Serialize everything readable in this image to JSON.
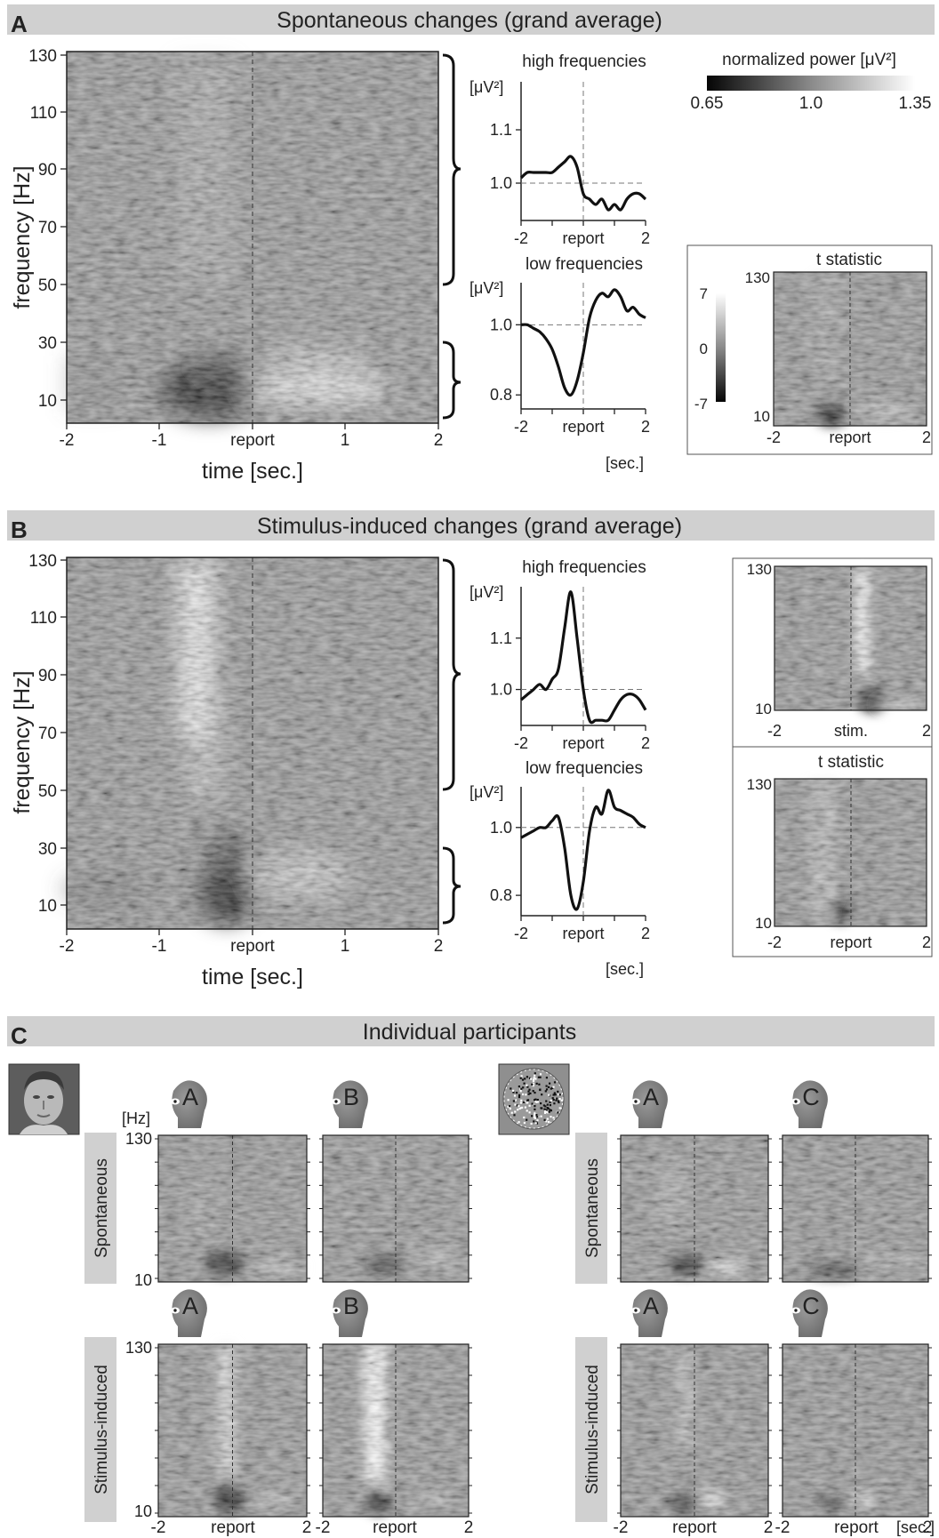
{
  "panels": {
    "A": {
      "letter": "A",
      "title": "Spontaneous changes (grand average)"
    },
    "B": {
      "letter": "B",
      "title": "Stimulus-induced changes (grand average)"
    },
    "C": {
      "letter": "C",
      "title": "Individual participants"
    }
  },
  "labels": {
    "frequency_axis": "frequency [Hz]",
    "time_axis": "time [sec.]",
    "high_frequencies": "high frequencies",
    "low_frequencies": "low frequencies",
    "power_unit": "[μV²]",
    "sec_unit": "[sec.]",
    "hz_unit": "[Hz]",
    "t_statistic": "t statistic",
    "colorbar_title": "normalized power  [μV²]",
    "colorbar_ticks": [
      "0.65",
      "1.0",
      "1.35"
    ],
    "tstat_ticks": [
      "7",
      "0",
      "-7"
    ],
    "report": "report",
    "stim": "stim.",
    "row_spontaneous": "Spontaneous",
    "row_stimulus": "Stimulus-induced",
    "participants_face": [
      "A",
      "B"
    ],
    "participants_noise": [
      "A",
      "C"
    ]
  },
  "colors": {
    "banner": "#d0d0d0",
    "trace": "#111111",
    "dashed": "#777777",
    "map_mid": "#8a8a8a"
  },
  "chart_data": [
    {
      "type": "heatmap",
      "panel": "A",
      "title": "Spontaneous changes (grand average)",
      "xlabel": "time [sec.]",
      "ylabel": "frequency [Hz]",
      "x_ticks": [
        "-2",
        "-1",
        "report",
        "1",
        "2"
      ],
      "y_ticks": [
        "130",
        "110",
        "90",
        "70",
        "50",
        "30",
        "10"
      ],
      "xlim": [
        -2,
        2
      ],
      "ylim": [
        3,
        130
      ],
      "colorbar": {
        "label": "normalized power [μV²]",
        "min": 0.65,
        "mid": 1.0,
        "max": 1.35
      }
    },
    {
      "type": "line",
      "panel": "A",
      "title": "high frequencies",
      "ylabel": "[μV²]",
      "xlim": [
        -2,
        2
      ],
      "ylim": [
        0.93,
        1.19
      ],
      "y_ticks": [
        "1.1",
        "1.0"
      ],
      "x_ticks": [
        "-2",
        "report",
        "2"
      ],
      "x": [
        -2.0,
        -1.8,
        -1.6,
        -1.4,
        -1.2,
        -1.0,
        -0.8,
        -0.6,
        -0.4,
        -0.2,
        0.0,
        0.2,
        0.4,
        0.6,
        0.8,
        1.0,
        1.2,
        1.4,
        1.6,
        1.8,
        2.0
      ],
      "y": [
        1.01,
        1.02,
        1.02,
        1.02,
        1.02,
        1.02,
        1.03,
        1.04,
        1.05,
        1.03,
        0.98,
        0.97,
        0.96,
        0.97,
        0.95,
        0.96,
        0.95,
        0.97,
        0.98,
        0.98,
        0.97
      ]
    },
    {
      "type": "line",
      "panel": "A",
      "title": "low frequencies",
      "ylabel": "[μV²]",
      "xlim": [
        -2,
        2
      ],
      "ylim": [
        0.76,
        1.12
      ],
      "y_ticks": [
        "1.0",
        "0.8"
      ],
      "x_ticks": [
        "-2",
        "report",
        "2"
      ],
      "x": [
        -2.0,
        -1.8,
        -1.6,
        -1.4,
        -1.2,
        -1.0,
        -0.8,
        -0.6,
        -0.4,
        -0.2,
        0.0,
        0.2,
        0.4,
        0.6,
        0.8,
        1.0,
        1.2,
        1.4,
        1.6,
        1.8,
        2.0
      ],
      "y": [
        1.0,
        1.0,
        0.99,
        0.98,
        0.96,
        0.93,
        0.88,
        0.82,
        0.8,
        0.84,
        0.92,
        1.02,
        1.07,
        1.09,
        1.08,
        1.1,
        1.08,
        1.04,
        1.05,
        1.03,
        1.02
      ]
    },
    {
      "type": "heatmap",
      "panel": "A",
      "title": "t statistic",
      "x_ticks": [
        "-2",
        "report",
        "2"
      ],
      "y_ticks": [
        "130",
        "10"
      ],
      "colorbar": {
        "min": -7,
        "mid": 0,
        "max": 7
      }
    },
    {
      "type": "heatmap",
      "panel": "B",
      "title": "Stimulus-induced changes (grand average)",
      "xlabel": "time [sec.]",
      "ylabel": "frequency [Hz]",
      "x_ticks": [
        "-2",
        "-1",
        "report",
        "1",
        "2"
      ],
      "y_ticks": [
        "130",
        "110",
        "90",
        "70",
        "50",
        "30",
        "10"
      ],
      "xlim": [
        -2,
        2
      ],
      "ylim": [
        3,
        130
      ]
    },
    {
      "type": "line",
      "panel": "B",
      "title": "high frequencies",
      "ylabel": "[μV²]",
      "xlim": [
        -2,
        2
      ],
      "ylim": [
        0.93,
        1.2
      ],
      "y_ticks": [
        "1.1",
        "1.0"
      ],
      "x_ticks": [
        "-2",
        "report",
        "2"
      ],
      "x": [
        -2.0,
        -1.8,
        -1.6,
        -1.4,
        -1.2,
        -1.0,
        -0.8,
        -0.6,
        -0.4,
        -0.2,
        0.0,
        0.2,
        0.4,
        0.6,
        0.8,
        1.0,
        1.2,
        1.4,
        1.6,
        1.8,
        2.0
      ],
      "y": [
        0.98,
        0.99,
        1.0,
        1.01,
        1.0,
        1.02,
        1.04,
        1.12,
        1.19,
        1.1,
        1.0,
        0.94,
        0.94,
        0.94,
        0.94,
        0.96,
        0.98,
        0.99,
        0.99,
        0.98,
        0.96
      ]
    },
    {
      "type": "line",
      "panel": "B",
      "title": "low frequencies",
      "ylabel": "[μV²]",
      "xlim": [
        -2,
        2
      ],
      "ylim": [
        0.74,
        1.12
      ],
      "y_ticks": [
        "1.0",
        "0.8"
      ],
      "x_ticks": [
        "-2",
        "report",
        "2"
      ],
      "x": [
        -2.0,
        -1.8,
        -1.6,
        -1.4,
        -1.2,
        -1.0,
        -0.8,
        -0.6,
        -0.4,
        -0.2,
        0.0,
        0.2,
        0.4,
        0.6,
        0.8,
        1.0,
        1.2,
        1.4,
        1.6,
        1.8,
        2.0
      ],
      "y": [
        0.97,
        0.98,
        0.99,
        1.0,
        1.0,
        1.02,
        1.03,
        0.94,
        0.8,
        0.76,
        0.84,
        0.99,
        1.06,
        1.04,
        1.11,
        1.06,
        1.05,
        1.04,
        1.03,
        1.01,
        1.0
      ]
    },
    {
      "type": "heatmap",
      "panel": "B",
      "x_ticks": [
        "-2",
        "stim.",
        "2"
      ],
      "y_ticks": [
        "130",
        "10"
      ]
    },
    {
      "type": "heatmap",
      "panel": "B",
      "title": "t statistic",
      "x_ticks": [
        "-2",
        "report",
        "2"
      ],
      "y_ticks": [
        "130",
        "10"
      ]
    },
    {
      "type": "heatmap",
      "panel": "C",
      "title": "Individual participants",
      "rows": [
        "Spontaneous",
        "Stimulus-induced"
      ],
      "groups": [
        {
          "stimulus": "face",
          "participants": [
            "A",
            "B"
          ]
        },
        {
          "stimulus": "noise",
          "participants": [
            "A",
            "C"
          ]
        }
      ],
      "x_ticks": [
        "-2",
        "report",
        "2"
      ],
      "y_ticks": [
        "130",
        "10"
      ]
    }
  ]
}
